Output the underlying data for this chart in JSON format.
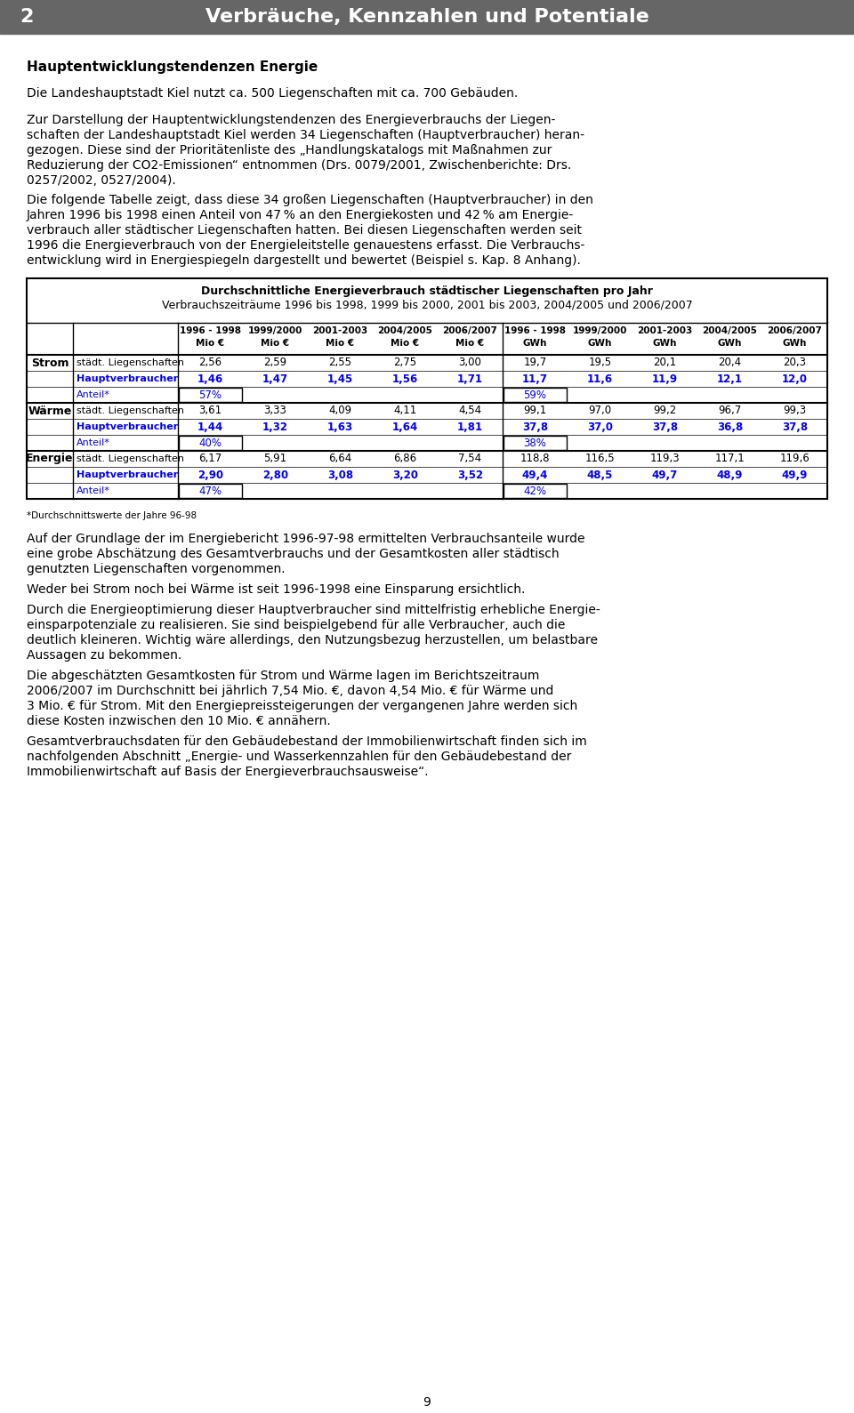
{
  "header_number": "2",
  "header_title": "Verbräuche, Kennzahlen und Potentiale",
  "header_bg": "#666666",
  "header_text_color": "#ffffff",
  "section_title": "Hauptentwicklungstendenzen Energie",
  "para1": "Die Landeshauptstadt Kiel nutzt ca. 500 Liegenschaften mit ca. 700 Gebäuden.",
  "table_title1": "Durchschnittliche Energieverbrauch städtischer Liegenschaften pro Jahr",
  "table_title2": "Verbrauchszeiträume 1996 bis 1998, 1999 bis 2000, 2001 bis 2003, 2004/2005 und 2006/2007",
  "col_headers": [
    [
      "1996 - 1998",
      "Mio €"
    ],
    [
      "1999/2000",
      "Mio €"
    ],
    [
      "2001-2003",
      "Mio €"
    ],
    [
      "2004/2005",
      "Mio €"
    ],
    [
      "2006/2007",
      "Mio €"
    ],
    [
      "1996 - 1998",
      "GWh"
    ],
    [
      "1999/2000",
      "GWh"
    ],
    [
      "2001-2003",
      "GWh"
    ],
    [
      "2004/2005",
      "GWh"
    ],
    [
      "2006/2007",
      "GWh"
    ]
  ],
  "row_labels_col0": [
    "Strom",
    "",
    "",
    "Wärme",
    "",
    "",
    "Energie",
    "",
    ""
  ],
  "row_labels_col1": [
    "städt. Liegenschaften",
    "Hauptverbraucher",
    "Anteil*",
    "städt. Liegenschaften",
    "Hauptverbraucher",
    "Anteil*",
    "städt. Liegenschaften",
    "Hauptverbraucher",
    "Anteil*"
  ],
  "table_data": [
    [
      "2,56",
      "2,59",
      "2,55",
      "2,75",
      "3,00",
      "19,7",
      "19,5",
      "20,1",
      "20,4",
      "20,3"
    ],
    [
      "1,46",
      "1,47",
      "1,45",
      "1,56",
      "1,71",
      "11,7",
      "11,6",
      "11,9",
      "12,1",
      "12,0"
    ],
    [
      "57%",
      "",
      "",
      "",
      "",
      "59%",
      "",
      "",
      "",
      ""
    ],
    [
      "3,61",
      "3,33",
      "4,09",
      "4,11",
      "4,54",
      "99,1",
      "97,0",
      "99,2",
      "96,7",
      "99,3"
    ],
    [
      "1,44",
      "1,32",
      "1,63",
      "1,64",
      "1,81",
      "37,8",
      "37,0",
      "37,8",
      "36,8",
      "37,8"
    ],
    [
      "40%",
      "",
      "",
      "",
      "",
      "38%",
      "",
      "",
      "",
      ""
    ],
    [
      "6,17",
      "5,91",
      "6,64",
      "6,86",
      "7,54",
      "118,8",
      "116,5",
      "119,3",
      "117,1",
      "119,6"
    ],
    [
      "2,90",
      "2,80",
      "3,08",
      "3,20",
      "3,52",
      "49,4",
      "48,5",
      "49,7",
      "48,9",
      "49,9"
    ],
    [
      "47%",
      "",
      "",
      "",
      "",
      "42%",
      "",
      "",
      "",
      ""
    ]
  ],
  "row_types": [
    "normal",
    "blue_bold",
    "blue_anteil",
    "normal",
    "blue_bold",
    "blue_anteil",
    "normal",
    "blue_bold",
    "blue_anteil"
  ],
  "footnote": "*Durchschnittswerte der Jahre 96-98",
  "page_number": "9",
  "blue_color": "#0000ff",
  "black_color": "#000000",
  "white_color": "#ffffff",
  "gray_header_bg": "#666666"
}
